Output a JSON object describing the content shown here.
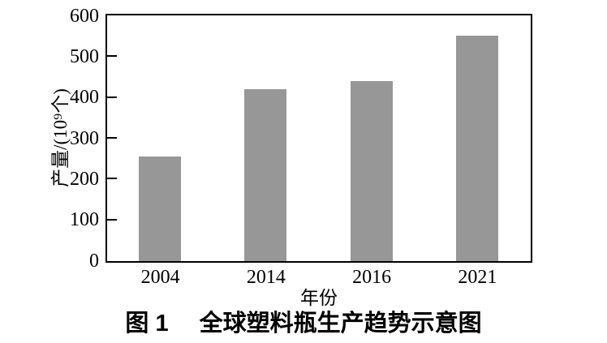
{
  "figure": {
    "caption_prefix": "图 1",
    "caption_title": "全球塑料瓶生产趋势示意图"
  },
  "chart_data": {
    "type": "bar",
    "title": "图 1 全球塑料瓶生产趋势示意图",
    "categories": [
      "2004",
      "2014",
      "2016",
      "2021"
    ],
    "values": [
      257,
      422,
      441,
      552
    ],
    "xlabel": "年份",
    "ylabel": "产量/(10⁹个)",
    "ylim": [
      0,
      600
    ],
    "yticks": [
      0,
      100,
      200,
      300,
      400,
      500,
      600
    ],
    "grid": false,
    "legend": "none",
    "bar_color": "#979797",
    "axis_color": "#000000",
    "background_color": "#ffffff"
  }
}
